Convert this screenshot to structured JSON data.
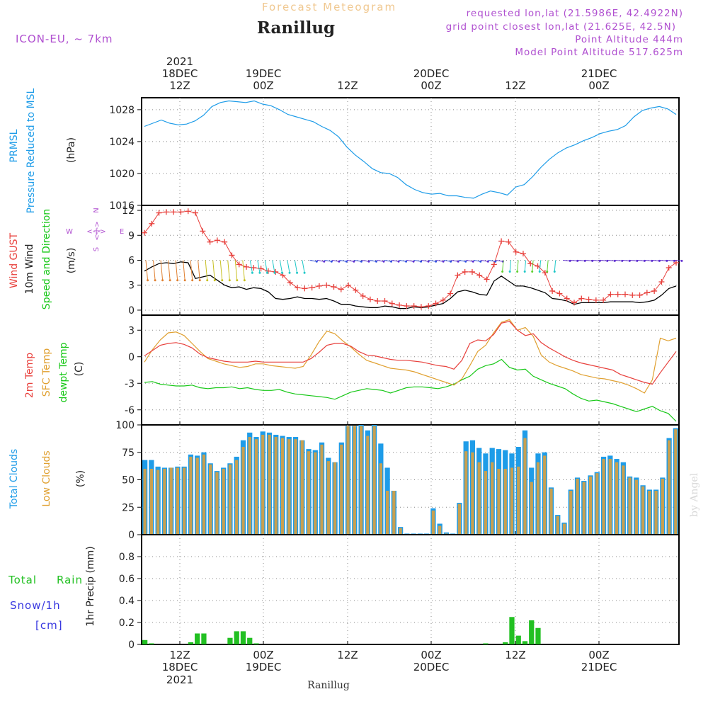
{
  "header": {
    "product": "Forecast Meteogram",
    "title": "Ranillug",
    "model": "ICON-EU, ~ 7km",
    "requested": "requested lon,lat (21.5986E, 42.4922N)",
    "grid_point": "grid point closest lon,lat (21.625E, 42.5N)",
    "point_altitude": "Point Altitude 444m",
    "model_altitude": "Model Point Altitude 517.625m"
  },
  "footer": {
    "station": "Ranillug",
    "credit": "by Angel"
  },
  "time_axis": {
    "top_labels": [
      {
        "hour": "12Z",
        "date": "18DEC",
        "year": "2021"
      },
      {
        "hour": "00Z",
        "date": "19DEC"
      },
      {
        "hour": "12Z"
      },
      {
        "hour": "00Z",
        "date": "20DEC"
      },
      {
        "hour": "12Z"
      },
      {
        "hour": "00Z",
        "date": "21DEC"
      }
    ],
    "bottom_labels": [
      {
        "hour": "12Z",
        "date": "18DEC",
        "year": "2021"
      },
      {
        "hour": "00Z",
        "date": "19DEC"
      },
      {
        "hour": "12Z"
      },
      {
        "hour": "00Z",
        "date": "20DEC"
      },
      {
        "hour": "12Z"
      },
      {
        "hour": "00Z",
        "date": "21DEC"
      }
    ]
  },
  "panel_labels": {
    "pressure": [
      "PRMSL",
      "Pressure Reduced to MSL",
      "(hPa)"
    ],
    "wind": [
      "Wind GUST",
      "10m Wind",
      "Speed and Direction",
      "(m/s)"
    ],
    "compass": {
      "n": "N",
      "s": "S",
      "w": "W",
      "e": "E",
      "arrows": "<-|->"
    },
    "temp": [
      "2m Temp",
      "SFC Temp",
      "dewpt Temp",
      "(C)"
    ],
    "clouds": [
      "Total Clouds",
      "Low Clouds",
      "(%)"
    ],
    "precip": [
      "Total",
      "Rain",
      "Snow/1h",
      "[cm]",
      "1hr Precip (mm)"
    ]
  },
  "colors": {
    "pressure": "#1e9ce8",
    "gust": "#e8403c",
    "wind": "#000000",
    "temp2m": "#e8403c",
    "sfc": "#e0a030",
    "dewpt": "#18c818",
    "total_cloud": "#1e9ce8",
    "low_cloud": "#c8a050",
    "rain": "#22c022",
    "snow_label": "#3838e0",
    "header_product": "#f0c890",
    "meta": "#b050d0",
    "grid": "#888888"
  },
  "chart_data": [
    {
      "type": "line",
      "name": "pressure",
      "ylim": [
        1016,
        1029.5
      ],
      "yticks": [
        1016,
        1020,
        1024,
        1028
      ],
      "x": [
        0,
        1,
        2,
        3,
        4,
        5,
        6,
        7,
        8,
        9,
        10,
        11,
        12,
        13,
        14,
        15,
        16,
        17,
        18,
        19,
        20,
        21,
        22,
        23,
        24,
        25,
        26,
        27,
        28,
        29,
        30,
        31,
        32,
        33,
        34,
        35,
        36,
        37,
        38,
        39,
        40,
        41,
        42,
        43,
        44,
        45,
        46,
        47,
        48,
        49,
        50,
        51,
        52,
        53,
        54,
        55,
        56,
        57,
        58,
        59,
        60,
        61,
        62,
        63
      ],
      "series": [
        {
          "values": [
            1025.9,
            1026.3,
            1026.7,
            1026.3,
            1026.1,
            1026.2,
            1026.6,
            1027.3,
            1028.4,
            1028.9,
            1029.1,
            1029.0,
            1028.9,
            1029.1,
            1028.7,
            1028.5,
            1028.0,
            1027.4,
            1027.1,
            1026.8,
            1026.5,
            1025.9,
            1025.4,
            1024.6,
            1023.3,
            1022.3,
            1021.5,
            1020.6,
            1020.1,
            1020.0,
            1019.5,
            1018.6,
            1018.0,
            1017.6,
            1017.4,
            1017.5,
            1017.2,
            1017.2,
            1017.0,
            1016.9,
            1017.4,
            1017.8,
            1017.6,
            1017.3,
            1018.3,
            1018.6,
            1019.6,
            1020.8,
            1021.8,
            1022.6,
            1023.2,
            1023.6,
            1024.1,
            1024.5,
            1025.0,
            1025.3,
            1025.5,
            1026.0,
            1027.1,
            1027.9,
            1028.2,
            1028.4,
            1028.1,
            1027.4
          ]
        }
      ]
    },
    {
      "type": "line",
      "name": "wind",
      "ylim": [
        -0.6,
        12.6
      ],
      "yticks": [
        0,
        3,
        6,
        9,
        12
      ],
      "series": [
        {
          "name": "Wind GUST",
          "values": [
            9.3,
            10.4,
            11.7,
            11.8,
            11.8,
            11.8,
            11.9,
            11.7,
            9.5,
            8.2,
            8.4,
            8.2,
            6.6,
            5.5,
            5.2,
            5.1,
            5.0,
            4.7,
            4.6,
            4.2,
            3.3,
            2.7,
            2.6,
            2.7,
            2.9,
            3.0,
            2.8,
            2.5,
            3.0,
            2.4,
            1.7,
            1.3,
            1.1,
            1.1,
            0.8,
            0.6,
            0.5,
            0.5,
            0.4,
            0.5,
            0.8,
            1.2,
            2.0,
            4.2,
            4.6,
            4.6,
            4.2,
            3.7,
            5.5,
            8.3,
            8.2,
            7.0,
            6.8,
            5.6,
            5.3,
            4.5,
            2.3,
            2.0,
            1.4,
            0.9,
            1.4,
            1.3,
            1.2,
            1.2,
            1.9,
            1.9,
            1.9,
            1.8,
            1.8,
            2.1,
            2.3,
            3.4,
            5.1,
            5.7
          ]
        },
        {
          "name": "10m Wind",
          "values": [
            4.7,
            5.2,
            5.6,
            5.7,
            5.6,
            5.8,
            5.7,
            3.8,
            4.0,
            4.2,
            3.6,
            3.0,
            2.7,
            2.8,
            2.5,
            2.7,
            2.6,
            2.2,
            1.4,
            1.3,
            1.4,
            1.6,
            1.4,
            1.4,
            1.3,
            1.4,
            1.1,
            0.7,
            0.7,
            0.5,
            0.4,
            0.3,
            0.3,
            0.5,
            0.4,
            0.2,
            0.2,
            0.4,
            0.3,
            0.4,
            0.6,
            0.8,
            1.4,
            2.2,
            2.4,
            2.2,
            1.9,
            1.8,
            3.5,
            4.1,
            3.5,
            2.9,
            2.9,
            2.7,
            2.4,
            2.1,
            1.4,
            1.3,
            1.1,
            0.7,
            0.9,
            0.9,
            0.9,
            0.9,
            1.0,
            1.0,
            1.0,
            1.0,
            0.9,
            1.0,
            1.2,
            1.8,
            2.6,
            2.9
          ]
        }
      ]
    },
    {
      "type": "line",
      "name": "temperature",
      "ylim": [
        -7.7,
        4.7
      ],
      "yticks": [
        -6,
        -3,
        0,
        3
      ],
      "series": [
        {
          "name": "2m Temp",
          "values": [
            0.1,
            0.7,
            1.3,
            1.5,
            1.6,
            1.4,
            1.0,
            0.3,
            -0.1,
            -0.3,
            -0.5,
            -0.6,
            -0.6,
            -0.6,
            -0.5,
            -0.6,
            -0.6,
            -0.6,
            -0.6,
            -0.6,
            -0.6,
            -0.2,
            0.5,
            1.3,
            1.5,
            1.5,
            1.2,
            0.6,
            0.2,
            0.1,
            -0.1,
            -0.3,
            -0.4,
            -0.4,
            -0.5,
            -0.6,
            -0.8,
            -1.0,
            -1.1,
            -1.4,
            -0.4,
            1.5,
            1.9,
            1.8,
            2.5,
            3.8,
            4.0,
            3.0,
            2.4,
            2.6,
            1.6,
            1.0,
            0.5,
            0.0,
            -0.4,
            -0.7,
            -0.9,
            -1.1,
            -1.3,
            -1.5,
            -2.0,
            -2.3,
            -2.6,
            -2.9,
            -3.1,
            -1.8,
            -0.6,
            0.6
          ]
        },
        {
          "name": "SFC Temp",
          "values": [
            -0.6,
            0.8,
            1.9,
            2.7,
            2.8,
            2.4,
            1.5,
            0.6,
            -0.2,
            -0.5,
            -0.8,
            -1.0,
            -1.2,
            -1.1,
            -0.8,
            -0.8,
            -1.0,
            -1.1,
            -1.2,
            -1.3,
            -1.1,
            0.2,
            1.7,
            2.9,
            2.6,
            1.8,
            1.1,
            0.3,
            -0.4,
            -0.7,
            -1.0,
            -1.3,
            -1.4,
            -1.5,
            -1.7,
            -2.0,
            -2.3,
            -2.6,
            -2.9,
            -3.2,
            -2.5,
            -1.0,
            0.6,
            1.3,
            2.7,
            3.9,
            4.2,
            3.0,
            3.3,
            2.3,
            0.2,
            -0.6,
            -1.0,
            -1.3,
            -1.6,
            -2.0,
            -2.2,
            -2.4,
            -2.5,
            -2.7,
            -2.9,
            -3.2,
            -3.6,
            -4.1,
            -2.6,
            2.1,
            1.8,
            2.1
          ]
        },
        {
          "name": "dewpt Temp",
          "values": [
            -2.9,
            -2.8,
            -3.1,
            -3.2,
            -3.3,
            -3.3,
            -3.2,
            -3.5,
            -3.6,
            -3.5,
            -3.5,
            -3.4,
            -3.6,
            -3.5,
            -3.7,
            -3.8,
            -3.8,
            -3.7,
            -4.0,
            -4.2,
            -4.3,
            -4.4,
            -4.5,
            -4.6,
            -4.8,
            -4.4,
            -4.0,
            -3.8,
            -3.6,
            -3.7,
            -3.8,
            -4.1,
            -3.8,
            -3.5,
            -3.4,
            -3.4,
            -3.5,
            -3.6,
            -3.4,
            -3.1,
            -2.6,
            -2.2,
            -1.4,
            -1.0,
            -0.8,
            -0.3,
            -1.2,
            -1.5,
            -1.4,
            -2.2,
            -2.6,
            -3.0,
            -3.3,
            -3.6,
            -4.2,
            -4.7,
            -5.0,
            -4.9,
            -5.1,
            -5.3,
            -5.6,
            -5.9,
            -6.2,
            -5.9,
            -5.6,
            -6.1,
            -6.4,
            -7.3
          ]
        }
      ]
    },
    {
      "type": "bar",
      "name": "clouds",
      "ylim": [
        0,
        100
      ],
      "yticks": [
        0,
        25,
        50,
        75,
        100
      ],
      "series": [
        {
          "name": "Total Clouds",
          "values": [
            68,
            68,
            62,
            61,
            61,
            62,
            62,
            73,
            72,
            75,
            65,
            58,
            61,
            65,
            71,
            86,
            93,
            89,
            94,
            93,
            91,
            90,
            89,
            89,
            86,
            78,
            77,
            84,
            70,
            66,
            84,
            99,
            99,
            100,
            95,
            100,
            83,
            61,
            40,
            7,
            1,
            1,
            1,
            1,
            24,
            10,
            2,
            1,
            29,
            85,
            86,
            79,
            74,
            79,
            78,
            77,
            74,
            80,
            95,
            61,
            74,
            75,
            43,
            18,
            11,
            41,
            52,
            49,
            54,
            57,
            71,
            72,
            69,
            66,
            53,
            52,
            45,
            41,
            41,
            52,
            88,
            97
          ]
        },
        {
          "name": "Low Clouds",
          "values": [
            60,
            60,
            59,
            60,
            61,
            61,
            61,
            71,
            70,
            73,
            64,
            57,
            60,
            64,
            68,
            80,
            89,
            87,
            91,
            91,
            89,
            88,
            87,
            87,
            86,
            76,
            75,
            82,
            67,
            66,
            82,
            99,
            99,
            99,
            90,
            99,
            65,
            40,
            40,
            6,
            0,
            0,
            0,
            0,
            22,
            8,
            1,
            0,
            28,
            76,
            75,
            66,
            58,
            66,
            60,
            60,
            61,
            62,
            88,
            48,
            66,
            72,
            42,
            17,
            10,
            40,
            51,
            48,
            53,
            56,
            69,
            69,
            66,
            63,
            52,
            50,
            44,
            40,
            40,
            51,
            86,
            96
          ]
        }
      ]
    },
    {
      "type": "bar",
      "name": "precipitation",
      "ylim": [
        0,
        1.0
      ],
      "yticks": [
        0,
        0.2,
        0.4,
        0.6,
        0.8
      ],
      "series": [
        {
          "name": "Total Rain",
          "values": [
            0.04,
            0.01,
            0,
            0,
            0,
            0,
            0,
            0.02,
            0.1,
            0.1,
            0,
            0,
            0,
            0.06,
            0.12,
            0.12,
            0.06,
            0.01,
            0,
            0,
            0,
            0,
            0,
            0,
            0,
            0,
            0,
            0,
            0,
            0,
            0,
            0,
            0,
            0,
            0,
            0,
            0,
            0,
            0,
            0,
            0,
            0,
            0,
            0,
            0,
            0,
            0,
            0,
            0,
            0,
            0,
            0,
            0.01,
            0,
            0,
            0.02,
            0.25,
            0.08,
            0.03,
            0.22,
            0.15,
            0,
            0,
            0,
            0,
            0,
            0,
            0,
            0,
            0,
            0,
            0,
            0,
            0,
            0,
            0,
            0,
            0,
            0,
            0,
            0,
            0
          ]
        }
      ]
    }
  ]
}
